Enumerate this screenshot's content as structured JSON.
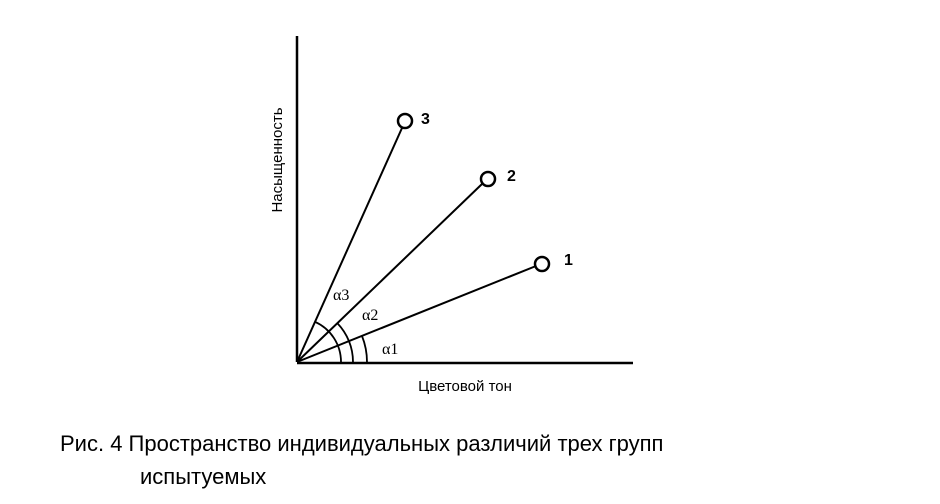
{
  "diagram": {
    "y_axis_label": "Насыщенность",
    "x_axis_label": "Цветовой тон",
    "points": [
      {
        "label": "1",
        "angle_label": "α1"
      },
      {
        "label": "2",
        "angle_label": "α2"
      },
      {
        "label": "3",
        "angle_label": "α3"
      }
    ]
  },
  "caption": {
    "lines": [
      "Рис. 4 Пространство индивидуальных различий трех групп",
      "испытуемых"
    ]
  }
}
